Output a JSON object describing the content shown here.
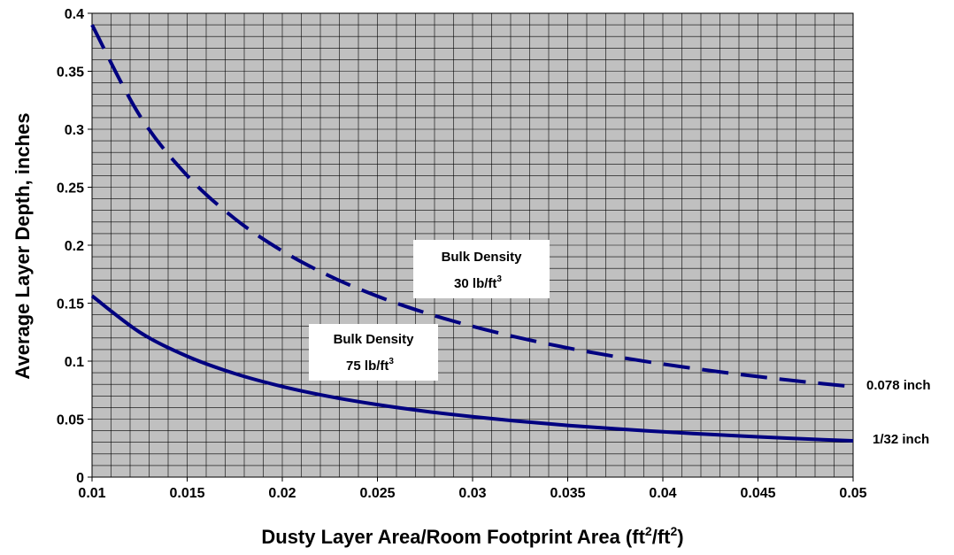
{
  "chart_data": {
    "type": "line",
    "xlabel": "Dusty Layer Area/Room Footprint Area (ft²/ft²)",
    "ylabel": "Average Layer Depth, inches",
    "xlim": [
      0.01,
      0.05
    ],
    "ylim": [
      0,
      0.4
    ],
    "x_ticks": [
      "0.01",
      "0.015",
      "0.02",
      "0.025",
      "0.03",
      "0.035",
      "0.04",
      "0.045",
      "0.05"
    ],
    "y_ticks": [
      "0",
      "0.05",
      "0.1",
      "0.15",
      "0.2",
      "0.25",
      "0.3",
      "0.35",
      "0.4"
    ],
    "grid": true,
    "plot_background": "#c0c0c0",
    "grid_color": "#000000",
    "series": [
      {
        "style": "dashed",
        "color": "#000080",
        "x": [
          0.01,
          0.0125,
          0.015,
          0.0175,
          0.02,
          0.0225,
          0.025,
          0.0275,
          0.03,
          0.0325,
          0.035,
          0.0375,
          0.04,
          0.0425,
          0.045,
          0.0475,
          0.05
        ],
        "y": [
          0.39,
          0.312,
          0.26,
          0.2229,
          0.195,
          0.1733,
          0.156,
          0.1418,
          0.13,
          0.12,
          0.1114,
          0.104,
          0.0975,
          0.0918,
          0.0867,
          0.0821,
          0.078
        ]
      },
      {
        "style": "solid",
        "color": "#000080",
        "x": [
          0.01,
          0.0125,
          0.015,
          0.0175,
          0.02,
          0.0225,
          0.025,
          0.0275,
          0.03,
          0.0325,
          0.035,
          0.0375,
          0.04,
          0.0425,
          0.045,
          0.0475,
          0.05
        ],
        "y": [
          0.1563,
          0.125,
          0.1042,
          0.0893,
          0.0781,
          0.0694,
          0.0625,
          0.0568,
          0.0521,
          0.0481,
          0.0446,
          0.0417,
          0.0391,
          0.0368,
          0.0347,
          0.0329,
          0.0313
        ]
      }
    ],
    "annotations": {
      "density_30": {
        "line1": "Bulk Density",
        "line2": "30 lb/ft",
        "sup": "3"
      },
      "density_75": {
        "line1": "Bulk Density",
        "line2": "75 lb/ft",
        "sup": "3"
      },
      "end_label_dashed": "0.078 inch",
      "end_label_solid": "1/32 inch"
    }
  }
}
